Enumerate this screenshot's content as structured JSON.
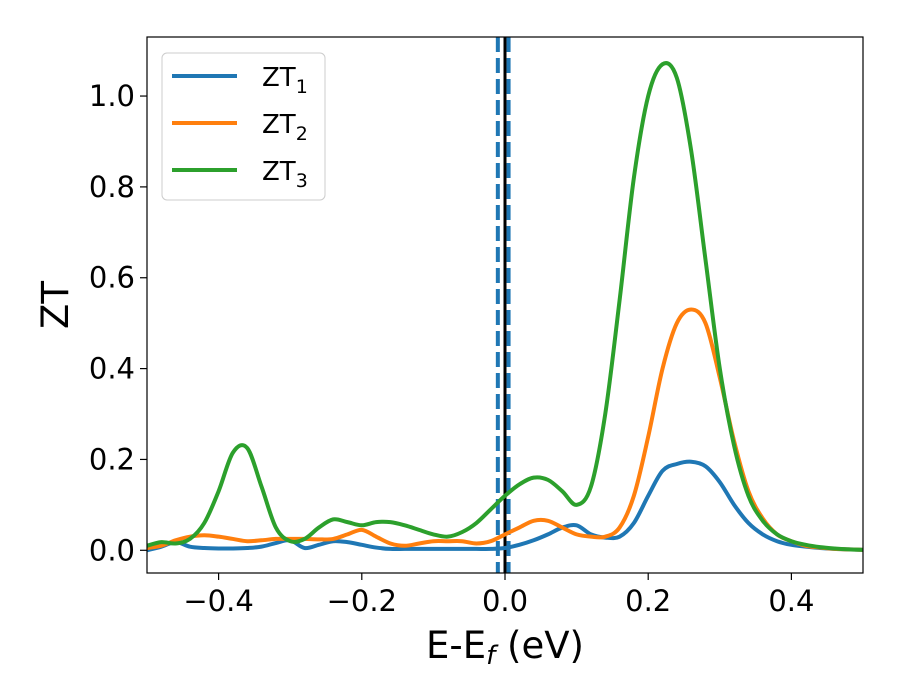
{
  "chart_data": {
    "type": "line",
    "title": "",
    "xlabel": "E-E",
    "xlabel_sub": "f",
    "xlabel_unit": " (eV)",
    "ylabel": "ZT",
    "xlim": [
      -0.5,
      0.5
    ],
    "ylim": [
      -0.05,
      1.13
    ],
    "grid": false,
    "legend_position": "top-left",
    "xticks": [
      -0.4,
      -0.2,
      0.0,
      0.2,
      0.4
    ],
    "xtick_labels": [
      "−0.4",
      "−0.2",
      "0.0",
      "0.2",
      "0.4"
    ],
    "yticks": [
      0.0,
      0.2,
      0.4,
      0.6,
      0.8,
      1.0
    ],
    "ytick_labels": [
      "0.0",
      "0.2",
      "0.4",
      "0.6",
      "0.8",
      "1.0"
    ],
    "vlines": [
      {
        "x": -0.01,
        "style": "dashed",
        "color": "#1f77b4"
      },
      {
        "x": 0.005,
        "style": "dashed",
        "color": "#1f77b4"
      },
      {
        "x": 0.0,
        "style": "solid",
        "color": "#000000"
      }
    ],
    "x": [
      -0.5,
      -0.48,
      -0.46,
      -0.44,
      -0.42,
      -0.4,
      -0.38,
      -0.36,
      -0.34,
      -0.32,
      -0.3,
      -0.28,
      -0.26,
      -0.24,
      -0.22,
      -0.2,
      -0.18,
      -0.16,
      -0.14,
      -0.12,
      -0.1,
      -0.08,
      -0.06,
      -0.04,
      -0.02,
      0.0,
      0.02,
      0.04,
      0.06,
      0.08,
      0.1,
      0.12,
      0.14,
      0.16,
      0.18,
      0.2,
      0.22,
      0.24,
      0.26,
      0.28,
      0.3,
      0.32,
      0.34,
      0.36,
      0.38,
      0.4,
      0.42,
      0.44,
      0.46,
      0.48,
      0.5
    ],
    "series": [
      {
        "name_base": "ZT",
        "name_sub": "1",
        "color": "#1f77b4",
        "values": [
          0.0,
          0.008,
          0.018,
          0.008,
          0.005,
          0.004,
          0.004,
          0.005,
          0.008,
          0.016,
          0.022,
          0.005,
          0.012,
          0.02,
          0.018,
          0.012,
          0.006,
          0.003,
          0.003,
          0.003,
          0.003,
          0.003,
          0.003,
          0.003,
          0.003,
          0.005,
          0.012,
          0.022,
          0.035,
          0.05,
          0.055,
          0.035,
          0.028,
          0.03,
          0.06,
          0.12,
          0.175,
          0.19,
          0.195,
          0.185,
          0.15,
          0.1,
          0.06,
          0.035,
          0.02,
          0.012,
          0.008,
          0.005,
          0.003,
          0.002,
          0.001
        ]
      },
      {
        "name_base": "ZT",
        "name_sub": "2",
        "color": "#ff7f0e",
        "values": [
          0.005,
          0.01,
          0.022,
          0.03,
          0.033,
          0.03,
          0.025,
          0.02,
          0.022,
          0.025,
          0.025,
          0.025,
          0.024,
          0.025,
          0.035,
          0.045,
          0.03,
          0.015,
          0.01,
          0.015,
          0.02,
          0.02,
          0.02,
          0.015,
          0.02,
          0.035,
          0.05,
          0.065,
          0.065,
          0.05,
          0.035,
          0.03,
          0.03,
          0.05,
          0.12,
          0.25,
          0.4,
          0.5,
          0.53,
          0.5,
          0.38,
          0.24,
          0.13,
          0.07,
          0.035,
          0.02,
          0.01,
          0.006,
          0.003,
          0.002,
          0.001
        ]
      },
      {
        "name_base": "ZT",
        "name_sub": "3",
        "color": "#2ca02c",
        "values": [
          0.01,
          0.018,
          0.015,
          0.025,
          0.06,
          0.13,
          0.215,
          0.225,
          0.14,
          0.05,
          0.02,
          0.025,
          0.05,
          0.068,
          0.062,
          0.055,
          0.062,
          0.062,
          0.055,
          0.045,
          0.035,
          0.03,
          0.04,
          0.06,
          0.09,
          0.12,
          0.145,
          0.16,
          0.155,
          0.13,
          0.1,
          0.14,
          0.3,
          0.55,
          0.82,
          1.0,
          1.07,
          1.04,
          0.88,
          0.64,
          0.4,
          0.23,
          0.12,
          0.065,
          0.035,
          0.02,
          0.012,
          0.007,
          0.004,
          0.002,
          0.001
        ]
      }
    ]
  }
}
